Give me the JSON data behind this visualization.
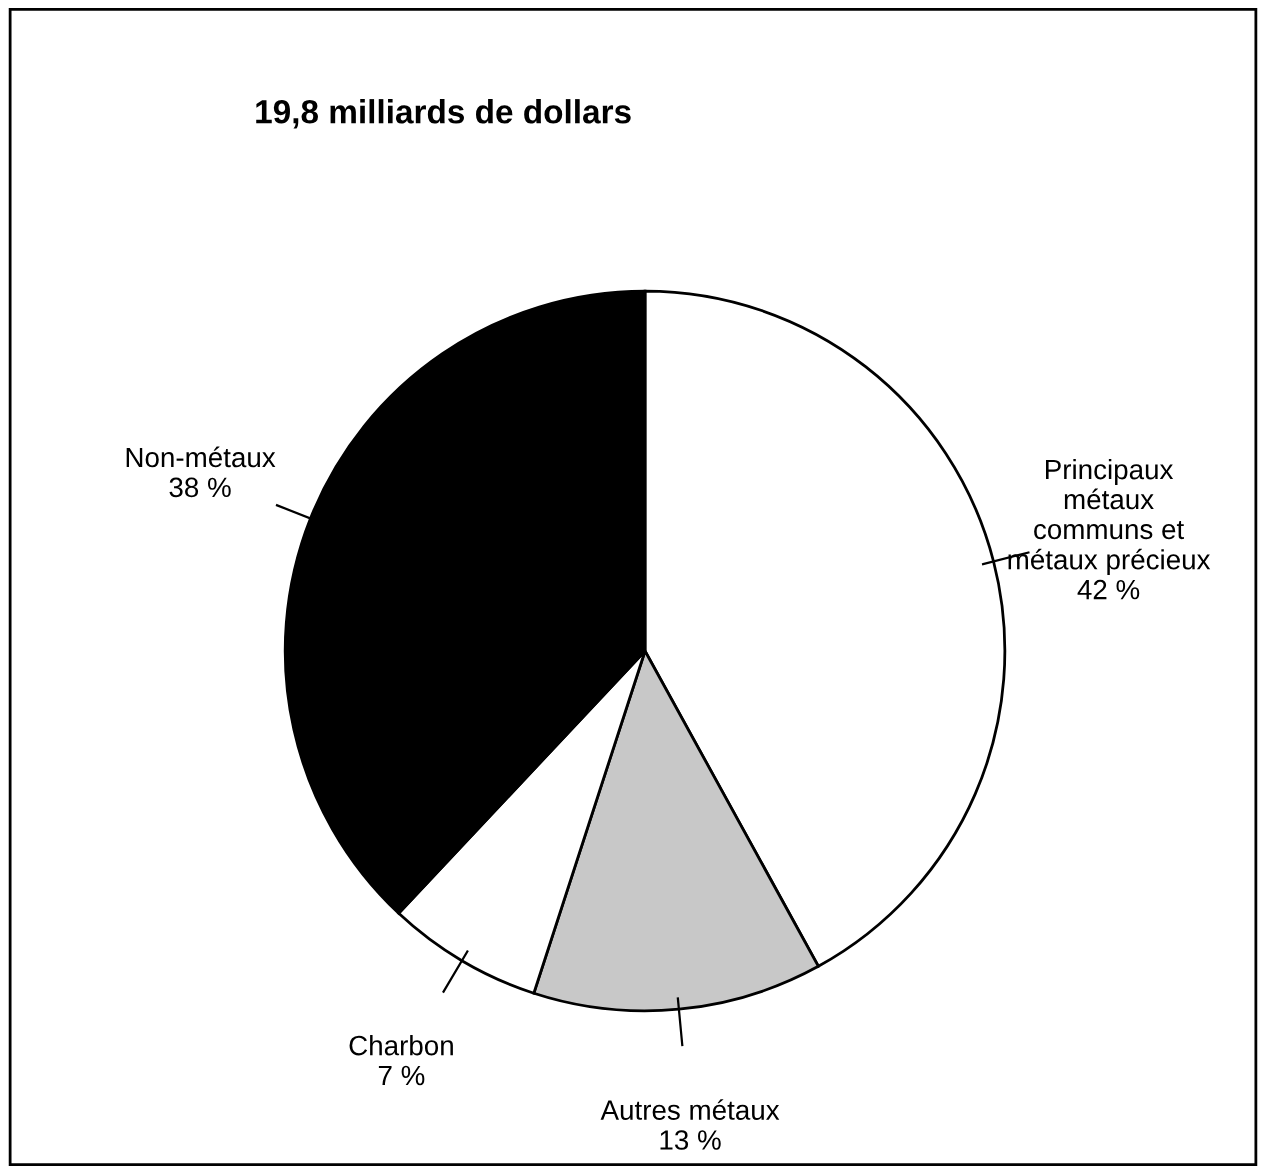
{
  "chart_data": {
    "type": "pie",
    "title": "19,8 milliards de dollars",
    "categories": [
      "Principaux\nmétaux\ncommuns et\nmétaux précieux",
      "Autres métaux",
      "Charbon",
      "Non-métaux"
    ],
    "values": [
      42,
      13,
      7,
      38
    ],
    "colors": [
      "#ffffff",
      "#c8c8c8",
      "#ffffff",
      "#000000"
    ],
    "value_labels": [
      "42 %",
      "13 %",
      "7 %",
      "38 %"
    ],
    "legend": false
  }
}
